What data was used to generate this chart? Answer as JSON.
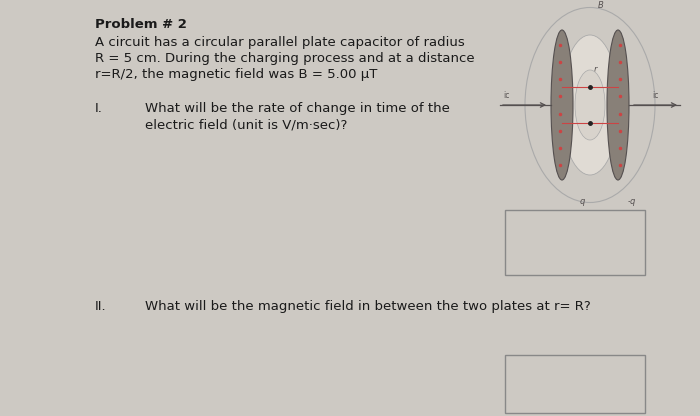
{
  "background_color": "#cdc9c3",
  "title": "Problem # 2",
  "problem_text_line1": "A circuit has a circular parallel plate capacitor of radius",
  "problem_text_line2": "R = 5 cm. During the charging process and at a distance",
  "problem_text_line3": "r=R/2, the magnetic field was B = 5.00 μT",
  "question1_roman": "I.",
  "question1_line1": "What will be the rate of change in time of the",
  "question1_line2": "electric field (unit is V/m·sec)?",
  "question2_roman": "II.",
  "question2_text": "What will be the magnetic field in between the two plates at r= R?",
  "text_color": "#1a1a1a",
  "box_edge_color": "#888888",
  "cap_plate_color": "#888078",
  "cap_plate_edge": "#555050",
  "cap_field_color": "#ddd8d0",
  "cap_outer_ellipse_color": "#c8c4bc",
  "wire_color": "#555050",
  "label_color": "#555050",
  "red_line_color": "#cc4444"
}
